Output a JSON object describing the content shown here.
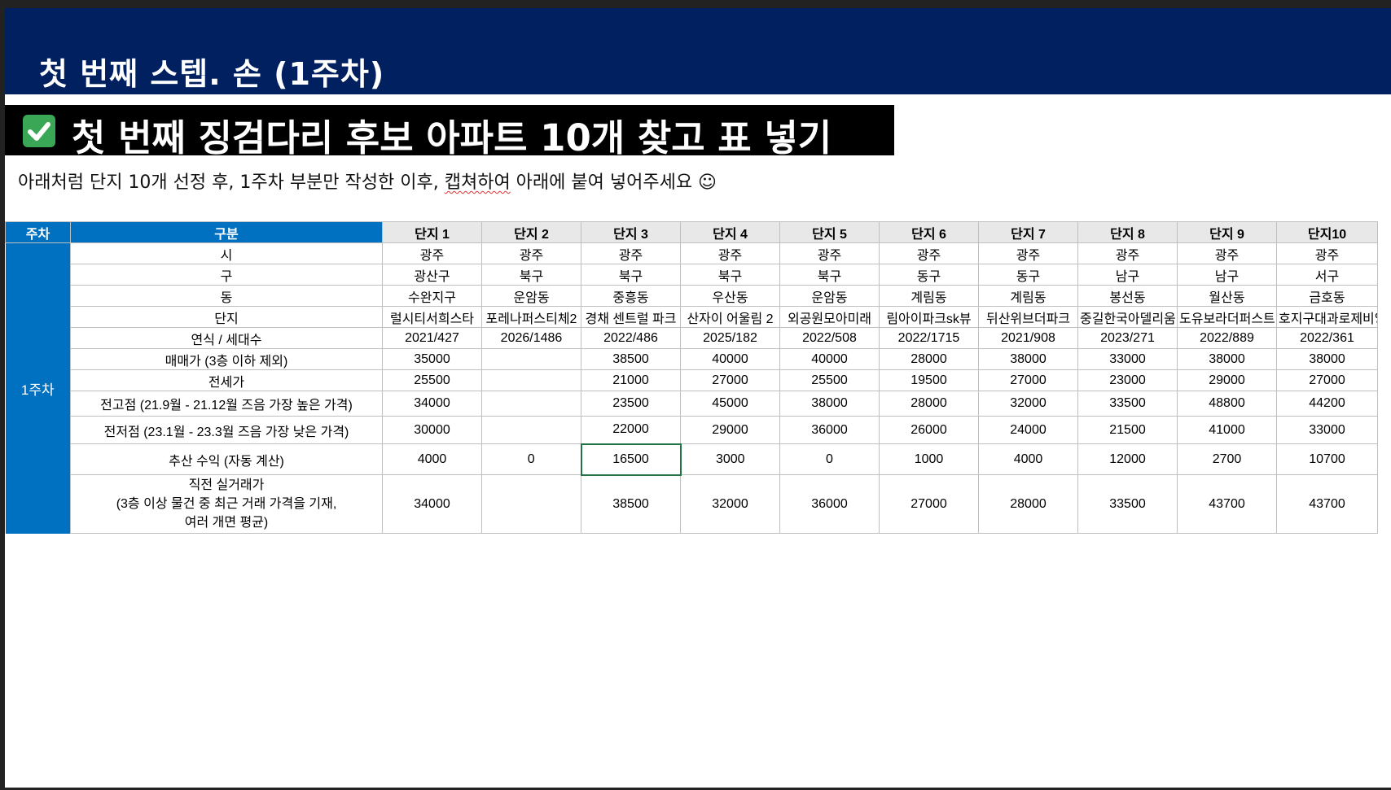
{
  "title": "첫 번째 스텝. 손 (1주차)",
  "banner": {
    "icon": "check-mark-icon",
    "icon_color": "#3aa757",
    "text": "첫 번째 징검다리 후보 아파트 10개 찾고 표 넣기"
  },
  "instruction": {
    "before": "아래처럼 단지 10개 선정 후, 1주차 부분만 작성한 이후, ",
    "underlined": "캡쳐하여",
    "after": " 아래에 붙여 넣어주세요 ☺"
  },
  "colors": {
    "title_bg": "#002060",
    "week_header_bg": "#0070c0",
    "selected_cell_border": "#217346"
  },
  "table": {
    "week_header": "주차",
    "category_header": "구분",
    "week_label": "1주차",
    "columns": [
      "단지 1",
      "단지 2",
      "단지 3",
      "단지 4",
      "단지 5",
      "단지 6",
      "단지 7",
      "단지 8",
      "단지 9",
      "단지10"
    ],
    "rows": [
      {
        "label": "시",
        "cells": [
          "광주",
          "광주",
          "광주",
          "광주",
          "광주",
          "광주",
          "광주",
          "광주",
          "광주",
          "광주"
        ]
      },
      {
        "label": "구",
        "cells": [
          "광산구",
          "북구",
          "북구",
          "북구",
          "북구",
          "동구",
          "동구",
          "남구",
          "남구",
          "서구"
        ]
      },
      {
        "label": "동",
        "cells": [
          "수완지구",
          "운암동",
          "중흥동",
          "우산동",
          "운암동",
          "계림동",
          "계림동",
          "봉선동",
          "월산동",
          "금호동"
        ]
      },
      {
        "label": "단지",
        "cells": [
          "럴시티서희스타",
          "포레나퍼스티체2",
          "경채 센트럴 파크",
          "산자이 어울림 2",
          "외공원모아미래",
          "림아이파크sk뷰",
          "뒤산위브더파크",
          "중길한국아델리움",
          "도유보라더퍼스트",
          "호지구대과로제비앙"
        ]
      },
      {
        "label": "연식 / 세대수",
        "cells": [
          "2021/427",
          "2026/1486",
          "2022/486",
          "2025/182",
          "2022/508",
          "2022/1715",
          "2021/908",
          "2023/271",
          "2022/889",
          "2022/361"
        ]
      },
      {
        "label": "매매가 (3층 이하 제외)",
        "cells": [
          "35000",
          "",
          "38500",
          "40000",
          "40000",
          "28000",
          "38000",
          "33000",
          "38000",
          "38000"
        ]
      },
      {
        "label": "전세가",
        "cells": [
          "25500",
          "",
          "21000",
          "27000",
          "25500",
          "19500",
          "27000",
          "23000",
          "29000",
          "27000"
        ]
      },
      {
        "label": "전고점 (21.9월 - 21.12월 즈음 가장 높은 가격)",
        "cells": [
          "34000",
          "",
          "23500",
          "45000",
          "38000",
          "28000",
          "32000",
          "33500",
          "48800",
          "44200"
        ]
      },
      {
        "label": "전저점 (23.1월 - 23.3월 즈음 가장 낮은 가격)",
        "cells": [
          "30000",
          "",
          "22000",
          "29000",
          "36000",
          "26000",
          "24000",
          "21500",
          "41000",
          "33000"
        ]
      },
      {
        "label": "추산 수익 (자동 계산)",
        "cells": [
          "4000",
          "0",
          "16500",
          "3000",
          "0",
          "1000",
          "4000",
          "12000",
          "2700",
          "10700"
        ]
      },
      {
        "label": "직전 실거래가",
        "label2": "(3층 이상 물건 중 최근 거래 가격을 기재,",
        "label3": "여러 개면 평균)",
        "cells": [
          "34000",
          "",
          "38500",
          "32000",
          "36000",
          "27000",
          "28000",
          "33500",
          "43700",
          "43700"
        ]
      }
    ]
  }
}
